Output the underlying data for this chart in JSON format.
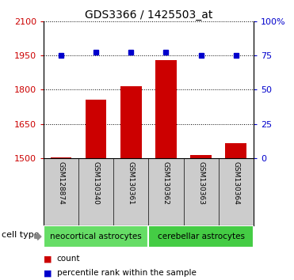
{
  "title": "GDS3366 / 1425503_at",
  "samples": [
    "GSM128874",
    "GSM130340",
    "GSM130361",
    "GSM130362",
    "GSM130363",
    "GSM130364"
  ],
  "counts": [
    1502,
    1755,
    1815,
    1930,
    1515,
    1565
  ],
  "percentiles": [
    75,
    77,
    77,
    77,
    75,
    75
  ],
  "ylim_left": [
    1500,
    2100
  ],
  "yticks_left": [
    1500,
    1650,
    1800,
    1950,
    2100
  ],
  "ylim_right": [
    0,
    100
  ],
  "yticks_right": [
    0,
    25,
    50,
    75,
    100
  ],
  "bar_color": "#cc0000",
  "dot_color": "#0000cc",
  "groups": [
    {
      "label": "neocortical astrocytes",
      "start": 0,
      "end": 3,
      "color": "#66dd66"
    },
    {
      "label": "cerebellar astrocytes",
      "start": 3,
      "end": 6,
      "color": "#44cc44"
    }
  ],
  "group_label": "cell type",
  "legend_count_color": "#cc0000",
  "legend_pct_color": "#0000cc",
  "bg_color": "#ffffff",
  "tick_label_color_left": "#cc0000",
  "tick_label_color_right": "#0000cc",
  "dotted_line_color": "#000000",
  "bar_width": 0.6,
  "sample_label_bg": "#cccccc"
}
